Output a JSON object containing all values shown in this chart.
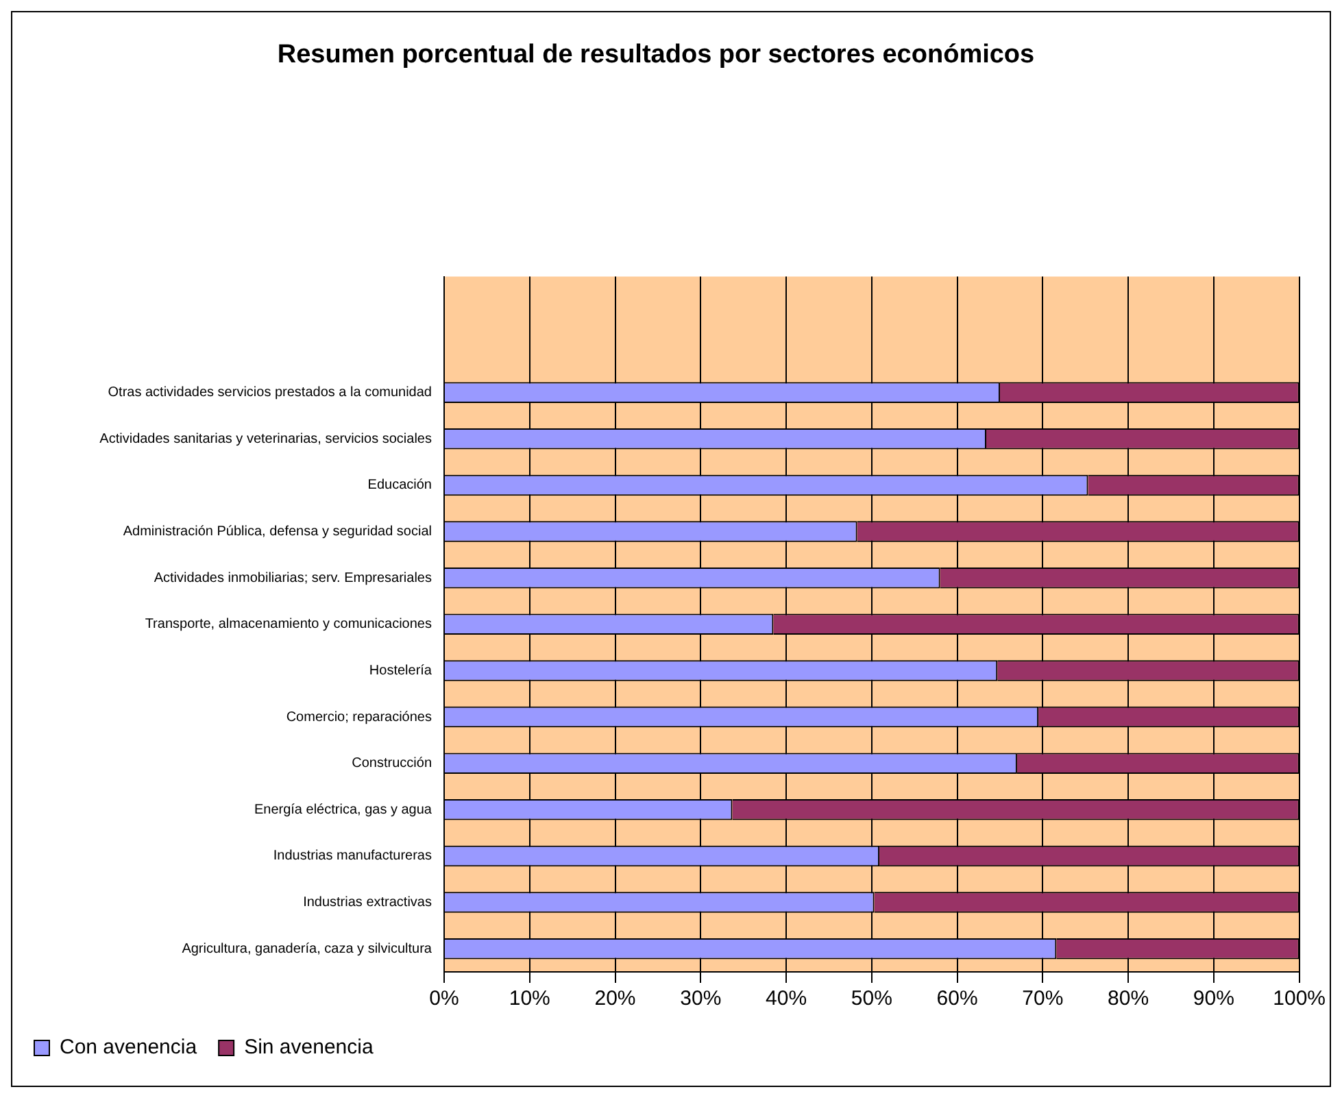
{
  "chart_data": {
    "type": "bar",
    "orientation": "horizontal",
    "stacked": true,
    "title": "Resumen porcentual de resultados por sectores económicos",
    "categories": [
      null,
      null,
      "Otras actividades servicios prestados a la comunidad",
      "Actividades sanitarias y veterinarias, servicios sociales",
      "Educación",
      "Administración Pública, defensa y seguridad social",
      "Actividades inmobiliarias; serv. Empresariales",
      "Transporte, almacenamiento y comunicaciones",
      "Hostelería",
      "Comercio; reparaciónes",
      "Construcción",
      "Energía eléctrica, gas y agua",
      "Industrias manufactureras",
      "Industrias extractivas",
      "Agricultura, ganadería, caza y silvicultura"
    ],
    "series": [
      {
        "name": "Con avenencia",
        "color": "#9999ff",
        "values": [
          null,
          null,
          65.0,
          63.4,
          75.3,
          48.3,
          58.0,
          38.5,
          64.7,
          69.5,
          67.0,
          33.7,
          50.9,
          50.3,
          71.6
        ]
      },
      {
        "name": "Sin avenencia",
        "color": "#993366",
        "values": [
          null,
          null,
          35.0,
          36.6,
          24.7,
          51.7,
          42.0,
          61.5,
          35.3,
          30.5,
          33.0,
          66.3,
          49.1,
          49.7,
          28.4
        ]
      }
    ],
    "xlim": [
      0,
      100
    ],
    "xticks": [
      {
        "value": 0,
        "label": "0%"
      },
      {
        "value": 10,
        "label": "10%"
      },
      {
        "value": 20,
        "label": "20%"
      },
      {
        "value": 30,
        "label": "30%"
      },
      {
        "value": 40,
        "label": "40%"
      },
      {
        "value": 50,
        "label": "50%"
      },
      {
        "value": 60,
        "label": "60%"
      },
      {
        "value": 70,
        "label": "70%"
      },
      {
        "value": 80,
        "label": "80%"
      },
      {
        "value": 90,
        "label": "90%"
      },
      {
        "value": 100,
        "label": "100%"
      }
    ],
    "grid": "x",
    "legend": "bottom left"
  }
}
